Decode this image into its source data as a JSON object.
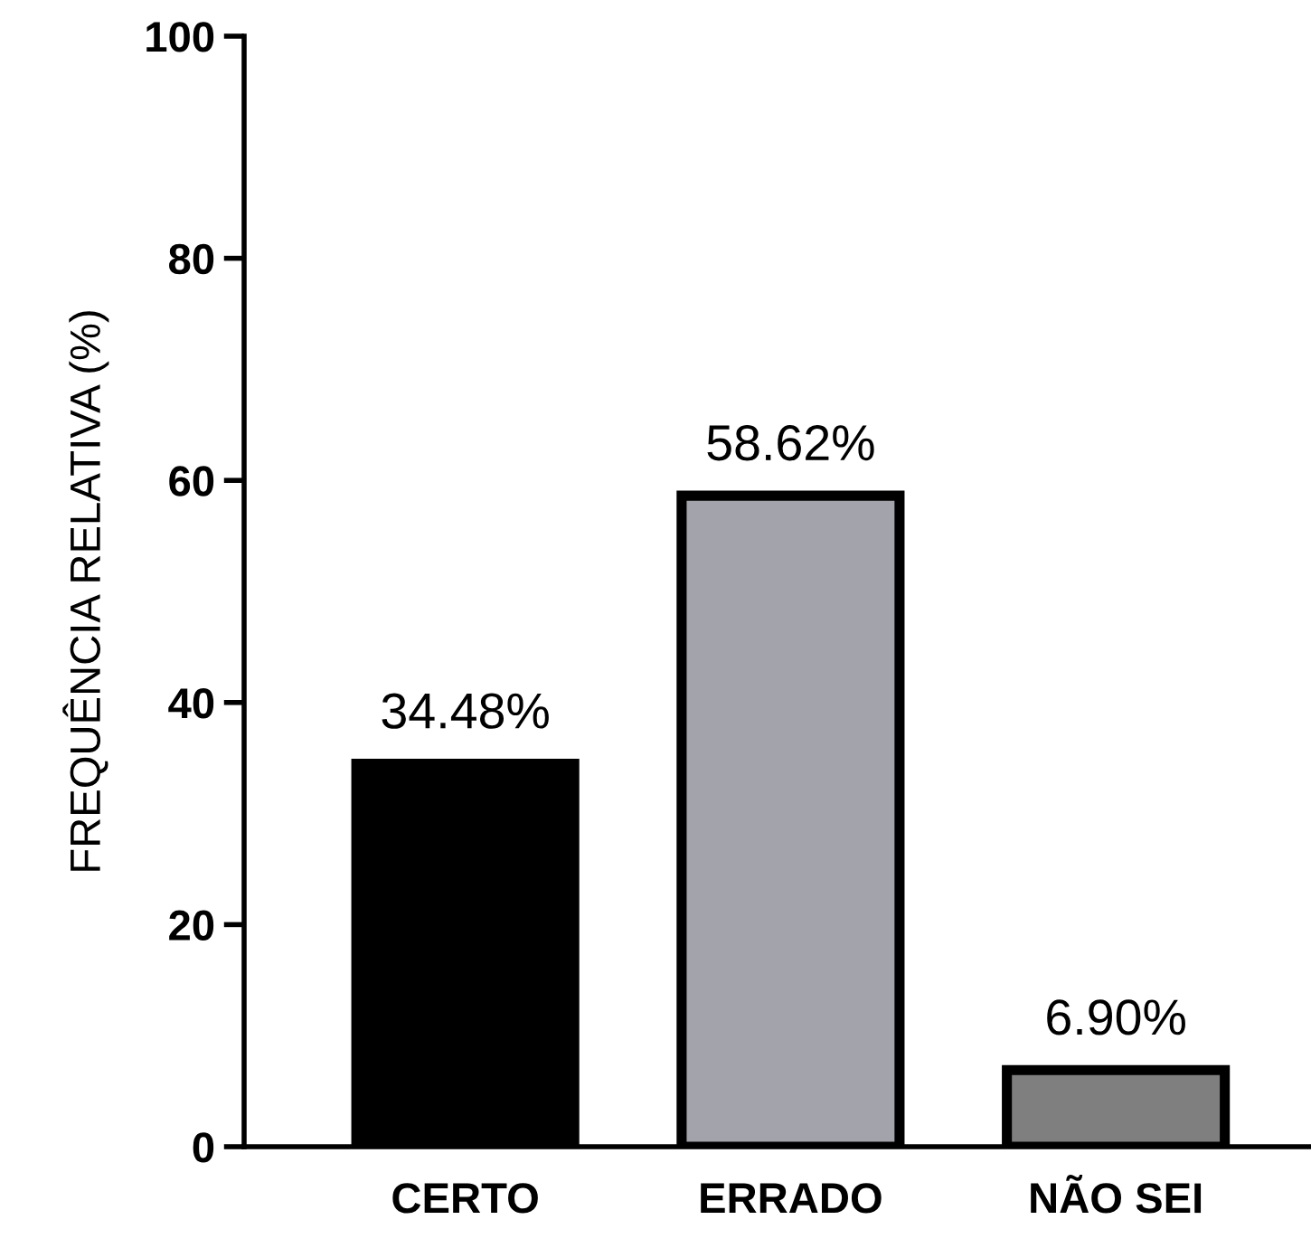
{
  "chart_data": {
    "type": "bar",
    "ylabel": "FREQUÊNCIA RELATIVA (%)",
    "categories": [
      "CERTO",
      "ERRADO",
      "NÃO SEI"
    ],
    "values": [
      34.48,
      58.62,
      6.9
    ],
    "colors": [
      "#000000",
      "#a3a3ab",
      "#7f7f7f"
    ],
    "value_labels": [
      "34.48%",
      "58.62%",
      "6.90%"
    ],
    "ylim": [
      0,
      100
    ],
    "yticks": [
      0,
      20,
      40,
      60,
      80,
      100
    ],
    "grid": false,
    "legend": false
  }
}
